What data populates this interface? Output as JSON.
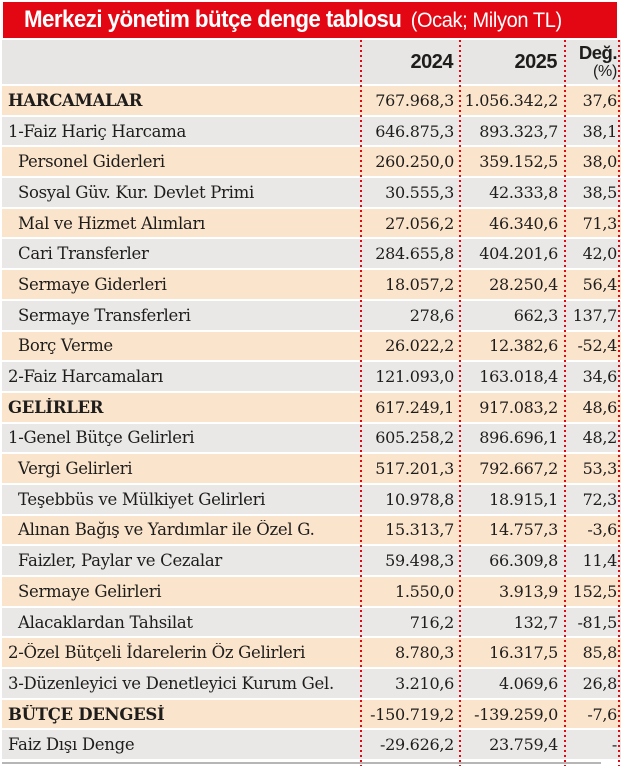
{
  "page_title": {
    "main": "Merkezi yönetim bütçe denge tablosu",
    "suffix": "(Ocak; Milyon TL)"
  },
  "colors": {
    "accent_red": "#e30613",
    "row_peach": "#fbe4cc",
    "row_grey": "#e9e8e6",
    "header_grey": "#e7e6e4",
    "text": "#1e1d1b"
  },
  "chart_data": {
    "type": "table",
    "title": "Merkezi yönetim bütçe denge tablosu",
    "subtitle": "Ocak; Milyon TL",
    "columns": {
      "label": "",
      "y2024": "2024",
      "y2025": "2025",
      "change_line1": "Değ.",
      "change_line2": "(%)"
    },
    "rows": [
      {
        "label": "HARCAMALAR",
        "y2024": "767.968,3",
        "y2025": "1.056.342,2",
        "change": "37,6",
        "bold": true,
        "indent": 0
      },
      {
        "label": "1-Faiz Hariç Harcama",
        "y2024": "646.875,3",
        "y2025": "893.323,7",
        "change": "38,1",
        "bold": false,
        "indent": 0
      },
      {
        "label": "Personel Giderleri",
        "y2024": "260.250,0",
        "y2025": "359.152,5",
        "change": "38,0",
        "bold": false,
        "indent": 1
      },
      {
        "label": "Sosyal Güv. Kur. Devlet Primi",
        "y2024": "30.555,3",
        "y2025": "42.333,8",
        "change": "38,5",
        "bold": false,
        "indent": 1
      },
      {
        "label": "Mal ve Hizmet Alımları",
        "y2024": "27.056,2",
        "y2025": "46.340,6",
        "change": "71,3",
        "bold": false,
        "indent": 1
      },
      {
        "label": "Cari Transferler",
        "y2024": "284.655,8",
        "y2025": "404.201,6",
        "change": "42,0",
        "bold": false,
        "indent": 1
      },
      {
        "label": "Sermaye Giderleri",
        "y2024": "18.057,2",
        "y2025": "28.250,4",
        "change": "56,4",
        "bold": false,
        "indent": 1
      },
      {
        "label": "Sermaye Transferleri",
        "y2024": "278,6",
        "y2025": "662,3",
        "change": "137,7",
        "bold": false,
        "indent": 1
      },
      {
        "label": "Borç Verme",
        "y2024": "26.022,2",
        "y2025": "12.382,6",
        "change": "-52,4",
        "bold": false,
        "indent": 1
      },
      {
        "label": "2-Faiz Harcamaları",
        "y2024": "121.093,0",
        "y2025": "163.018,4",
        "change": "34,6",
        "bold": false,
        "indent": 0
      },
      {
        "label": "GELİRLER",
        "y2024": "617.249,1",
        "y2025": "917.083,2",
        "change": "48,6",
        "bold": true,
        "indent": 0
      },
      {
        "label": "1-Genel Bütçe Gelirleri",
        "y2024": "605.258,2",
        "y2025": "896.696,1",
        "change": "48,2",
        "bold": false,
        "indent": 0
      },
      {
        "label": "Vergi Gelirleri",
        "y2024": "517.201,3",
        "y2025": "792.667,2",
        "change": "53,3",
        "bold": false,
        "indent": 1
      },
      {
        "label": "Teşebbüs ve Mülkiyet Gelirleri",
        "y2024": "10.978,8",
        "y2025": "18.915,1",
        "change": "72,3",
        "bold": false,
        "indent": 1
      },
      {
        "label": "Alınan Bağış ve Yardımlar ile Özel G.",
        "y2024": "15.313,7",
        "y2025": "14.757,3",
        "change": "-3,6",
        "bold": false,
        "indent": 1
      },
      {
        "label": "Faizler, Paylar ve Cezalar",
        "y2024": "59.498,3",
        "y2025": "66.309,8",
        "change": "11,4",
        "bold": false,
        "indent": 1
      },
      {
        "label": "Sermaye Gelirleri",
        "y2024": "1.550,0",
        "y2025": "3.913,9",
        "change": "152,5",
        "bold": false,
        "indent": 1
      },
      {
        "label": "Alacaklardan Tahsilat",
        "y2024": "716,2",
        "y2025": "132,7",
        "change": "-81,5",
        "bold": false,
        "indent": 1
      },
      {
        "label": "2-Özel Bütçeli İdarelerin Öz Gelirleri",
        "y2024": "8.780,3",
        "y2025": "16.317,5",
        "change": "85,8",
        "bold": false,
        "indent": 0
      },
      {
        "label": "3-Düzenleyici ve Denetleyici Kurum Gel.",
        "y2024": "3.210,6",
        "y2025": "4.069,6",
        "change": "26,8",
        "bold": false,
        "indent": 0
      },
      {
        "label": "BÜTÇE DENGESİ",
        "y2024": "-150.719,2",
        "y2025": "-139.259,0",
        "change": "-7,6",
        "bold": true,
        "indent": 0
      },
      {
        "label": "Faiz Dışı Denge",
        "y2024": "-29.626,2",
        "y2025": "23.759,4",
        "change": "-",
        "bold": false,
        "indent": 0
      }
    ]
  }
}
